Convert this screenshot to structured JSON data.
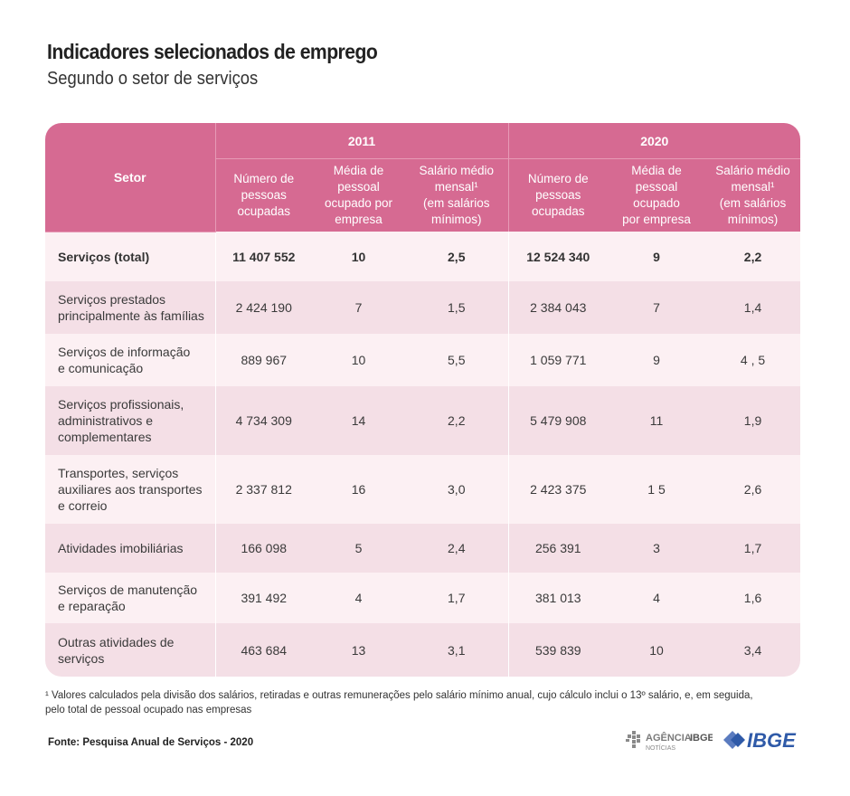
{
  "header": {
    "title": "Indicadores selecionados de emprego",
    "subtitle": "Segundo o setor de serviços"
  },
  "table": {
    "setor_header": "Setor",
    "years": [
      "2011",
      "2020"
    ],
    "columns": [
      [
        "Número de",
        "pessoas",
        "ocupadas"
      ],
      [
        "Média de",
        "pessoal",
        "ocupado por",
        "empresa"
      ],
      [
        "Salário médio",
        "mensal¹",
        "(em salários",
        "mínimos)"
      ],
      [
        "Número de",
        "pessoas",
        "ocupadas"
      ],
      [
        "Média de",
        "pessoal",
        "ocupado",
        "por empresa"
      ],
      [
        "Salário médio",
        "mensal¹",
        "(em salários",
        "mínimos)"
      ]
    ],
    "rows": [
      {
        "setor": [
          "Serviços (total)"
        ],
        "values": [
          "11 407 552",
          "10",
          "2,5",
          "12 524 340",
          "9",
          "2,2"
        ]
      },
      {
        "setor": [
          "Serviços prestados",
          "principalmente às famílias"
        ],
        "values": [
          "2 424 190",
          "7",
          "1,5",
          "2 384 043",
          "7",
          "1,4"
        ]
      },
      {
        "setor": [
          "Serviços de informação",
          "e comunicação"
        ],
        "values": [
          "889 967",
          "10",
          "5,5",
          "1 059 771",
          "9",
          "4 , 5"
        ]
      },
      {
        "setor": [
          "Serviços profissionais,",
          "administrativos e",
          "complementares"
        ],
        "values": [
          "4 734 309",
          "14",
          "2,2",
          "5 479 908",
          "11",
          "1,9"
        ]
      },
      {
        "setor": [
          "Transportes, serviços",
          "auxiliares aos transportes",
          "e correio"
        ],
        "values": [
          "2 337 812",
          "16",
          "3,0",
          "2 423 375",
          "1 5",
          "2,6"
        ]
      },
      {
        "setor": [
          "Atividades imobiliárias"
        ],
        "values": [
          "166 098",
          "5",
          "2,4",
          "256 391",
          "3",
          "1,7"
        ]
      },
      {
        "setor": [
          "Serviços de manutenção",
          "e reparação"
        ],
        "values": [
          "391 492",
          "4",
          "1,7",
          "381 013",
          "4",
          "1,6"
        ]
      },
      {
        "setor": [
          "Outras atividades de",
          "serviços"
        ],
        "values": [
          "463 684",
          "13",
          "3,1",
          "539 839",
          "10",
          "3,4"
        ]
      }
    ]
  },
  "footnote": [
    "¹ Valores calculados pela divisão dos salários, retiradas e outras remunerações pelo salário mínimo anual, cujo cálculo inclui o 13º salário, e, em seguida,",
    "pelo total de pessoal ocupado nas empresas"
  ],
  "source": "Fonte: Pesquisa Anual de Serviços - 2020",
  "logos": {
    "agencia": "AGÊNCIA",
    "ibge_small": "IBGE",
    "noticias": "NOTÍCIAS",
    "ibge": "IBGE"
  }
}
